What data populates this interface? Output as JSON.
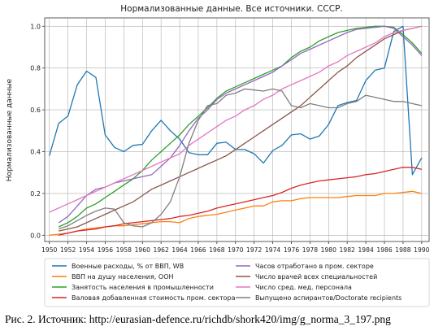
{
  "caption": "Рис. 2. Источник: http://eurasian-defence.ru/richdb/shork420/img/g_norma_3_197.png",
  "chart_data": {
    "type": "line",
    "title": "Нормализованные данные. Все источники. СССР.",
    "xlabel": "",
    "ylabel": "Нормализованные данные",
    "xlim": [
      1949.5,
      1990.8
    ],
    "ylim": [
      -0.03,
      1.04
    ],
    "x_ticks": [
      1950,
      1952,
      1954,
      1956,
      1958,
      1960,
      1962,
      1964,
      1966,
      1968,
      1970,
      1972,
      1974,
      1976,
      1978,
      1980,
      1982,
      1984,
      1986,
      1988,
      1990
    ],
    "y_ticks": [
      0.0,
      0.2,
      0.4,
      0.6,
      0.8,
      1.0
    ],
    "y_tick_labels": [
      "0.0",
      "0.2",
      "0.4",
      "0.6",
      "0.8",
      "1.0"
    ],
    "grid": true,
    "legend_position": "below",
    "series": [
      {
        "name": "Военные расходы, % от ВВП, WB",
        "color": "#1f77b4",
        "x": [
          1950,
          1951,
          1952,
          1953,
          1954,
          1955,
          1956,
          1957,
          1958,
          1959,
          1960,
          1961,
          1962,
          1963,
          1964,
          1965,
          1966,
          1967,
          1968,
          1969,
          1970,
          1971,
          1972,
          1973,
          1974,
          1975,
          1976,
          1977,
          1978,
          1979,
          1980,
          1981,
          1982,
          1983,
          1984,
          1985,
          1986,
          1987,
          1988,
          1989,
          1990
        ],
        "y": [
          0.38,
          0.535,
          0.57,
          0.72,
          0.785,
          0.755,
          0.48,
          0.42,
          0.4,
          0.43,
          0.435,
          0.5,
          0.55,
          0.5,
          0.46,
          0.395,
          0.385,
          0.385,
          0.44,
          0.445,
          0.41,
          0.41,
          0.39,
          0.345,
          0.405,
          0.43,
          0.48,
          0.485,
          0.46,
          0.475,
          0.53,
          0.62,
          0.635,
          0.645,
          0.74,
          0.79,
          0.8,
          0.975,
          1.0,
          0.29,
          0.37
        ]
      },
      {
        "name": "ВВП на душу населения, ООН",
        "color": "#ff7f0e",
        "x": [
          1950,
          1951,
          1952,
          1953,
          1954,
          1955,
          1956,
          1957,
          1958,
          1959,
          1960,
          1961,
          1962,
          1963,
          1964,
          1965,
          1966,
          1967,
          1968,
          1969,
          1970,
          1971,
          1972,
          1973,
          1974,
          1975,
          1976,
          1977,
          1978,
          1979,
          1980,
          1981,
          1982,
          1983,
          1984,
          1985,
          1986,
          1987,
          1988,
          1989,
          1990
        ],
        "y": [
          0.0,
          0.005,
          0.01,
          0.02,
          0.03,
          0.035,
          0.04,
          0.045,
          0.045,
          0.05,
          0.055,
          0.06,
          0.065,
          0.065,
          0.06,
          0.08,
          0.09,
          0.095,
          0.1,
          0.11,
          0.12,
          0.13,
          0.14,
          0.14,
          0.16,
          0.165,
          0.165,
          0.175,
          0.18,
          0.18,
          0.18,
          0.18,
          0.185,
          0.19,
          0.19,
          0.19,
          0.2,
          0.2,
          0.205,
          0.21,
          0.2
        ]
      },
      {
        "name": "Занятость населения в промышленности",
        "color": "#2ca02c",
        "x": [
          1951,
          1952,
          1953,
          1954,
          1955,
          1956,
          1957,
          1958,
          1959,
          1960,
          1961,
          1962,
          1963,
          1964,
          1965,
          1966,
          1967,
          1968,
          1969,
          1970,
          1971,
          1972,
          1973,
          1974,
          1975,
          1976,
          1977,
          1978,
          1979,
          1980,
          1981,
          1982,
          1983,
          1984,
          1985,
          1986,
          1987,
          1988,
          1989,
          1990
        ],
        "y": [
          0.04,
          0.06,
          0.09,
          0.13,
          0.15,
          0.18,
          0.21,
          0.24,
          0.27,
          0.31,
          0.36,
          0.4,
          0.44,
          0.48,
          0.53,
          0.57,
          0.61,
          0.655,
          0.69,
          0.71,
          0.73,
          0.75,
          0.77,
          0.79,
          0.81,
          0.85,
          0.88,
          0.9,
          0.93,
          0.95,
          0.97,
          0.98,
          0.99,
          0.995,
          1.0,
          1.0,
          0.995,
          0.96,
          0.92,
          0.87
        ]
      },
      {
        "name": "Валовая добавленная стоимость пром. сектора",
        "color": "#d62728",
        "x": [
          1951,
          1952,
          1953,
          1954,
          1955,
          1956,
          1957,
          1958,
          1959,
          1960,
          1961,
          1962,
          1963,
          1964,
          1965,
          1966,
          1967,
          1968,
          1969,
          1970,
          1971,
          1972,
          1973,
          1974,
          1975,
          1976,
          1977,
          1978,
          1979,
          1980,
          1981,
          1982,
          1983,
          1984,
          1985,
          1986,
          1987,
          1988,
          1989,
          1990
        ],
        "y": [
          0.0,
          0.01,
          0.02,
          0.025,
          0.03,
          0.04,
          0.045,
          0.055,
          0.06,
          0.065,
          0.07,
          0.075,
          0.08,
          0.09,
          0.095,
          0.105,
          0.115,
          0.13,
          0.14,
          0.15,
          0.16,
          0.17,
          0.18,
          0.19,
          0.205,
          0.225,
          0.24,
          0.25,
          0.26,
          0.265,
          0.27,
          0.275,
          0.28,
          0.29,
          0.295,
          0.305,
          0.315,
          0.325,
          0.325,
          0.315
        ]
      },
      {
        "name": "Часов отработано в пром. секторе",
        "color": "#9467bd",
        "x": [
          1951,
          1952,
          1953,
          1954,
          1955,
          1956,
          1957,
          1958,
          1959,
          1960,
          1961,
          1962,
          1963,
          1964,
          1965,
          1966,
          1967,
          1968,
          1969,
          1970,
          1971,
          1972,
          1973,
          1974,
          1975,
          1976,
          1977,
          1978,
          1979,
          1980,
          1981,
          1982,
          1983,
          1984,
          1985,
          1986,
          1987,
          1988,
          1989,
          1990
        ],
        "y": [
          0.06,
          0.09,
          0.14,
          0.19,
          0.22,
          0.23,
          0.25,
          0.26,
          0.27,
          0.28,
          0.29,
          0.33,
          0.37,
          0.43,
          0.5,
          0.56,
          0.6,
          0.65,
          0.68,
          0.7,
          0.72,
          0.74,
          0.76,
          0.78,
          0.81,
          0.84,
          0.87,
          0.89,
          0.91,
          0.93,
          0.95,
          0.97,
          0.985,
          0.99,
          0.995,
          1.0,
          0.99,
          0.95,
          0.91,
          0.86
        ]
      },
      {
        "name": "Число врачей всех специальностей",
        "color": "#8c564b",
        "x": [
          1951,
          1952,
          1953,
          1954,
          1955,
          1956,
          1957,
          1958,
          1959,
          1960,
          1961,
          1962,
          1963,
          1964,
          1965,
          1966,
          1967,
          1968,
          1969,
          1970,
          1971,
          1972,
          1973,
          1974,
          1975,
          1976,
          1977,
          1978,
          1979,
          1980,
          1981,
          1982,
          1983,
          1984,
          1985,
          1986,
          1987,
          1988,
          1989,
          1990
        ],
        "y": [
          0.02,
          0.03,
          0.04,
          0.06,
          0.08,
          0.1,
          0.12,
          0.14,
          0.16,
          0.19,
          0.22,
          0.24,
          0.26,
          0.28,
          0.3,
          0.32,
          0.34,
          0.36,
          0.38,
          0.41,
          0.44,
          0.47,
          0.5,
          0.53,
          0.56,
          0.59,
          0.62,
          0.66,
          0.7,
          0.74,
          0.78,
          0.81,
          0.85,
          0.88,
          0.91,
          0.94,
          0.96,
          0.98,
          0.99,
          1.0
        ]
      },
      {
        "name": "Число сред. мед. персонала",
        "color": "#e377c2",
        "x": [
          1950,
          1951,
          1952,
          1953,
          1954,
          1955,
          1956,
          1957,
          1958,
          1959,
          1960,
          1961,
          1962,
          1963,
          1964,
          1965,
          1966,
          1967,
          1968,
          1969,
          1970,
          1971,
          1972,
          1973,
          1974,
          1975,
          1976,
          1977,
          1978,
          1979,
          1980,
          1981,
          1982,
          1983,
          1984,
          1985,
          1986,
          1987,
          1988,
          1989,
          1990
        ],
        "y": [
          0.11,
          0.13,
          0.15,
          0.17,
          0.19,
          0.21,
          0.23,
          0.25,
          0.27,
          0.29,
          0.31,
          0.33,
          0.35,
          0.37,
          0.39,
          0.43,
          0.46,
          0.49,
          0.52,
          0.55,
          0.57,
          0.6,
          0.62,
          0.65,
          0.67,
          0.7,
          0.72,
          0.74,
          0.76,
          0.78,
          0.81,
          0.83,
          0.86,
          0.88,
          0.9,
          0.92,
          0.95,
          0.97,
          0.98,
          0.99,
          1.0
        ]
      },
      {
        "name": "Выпущено аспирантов/Doctorate recipients",
        "color": "#7f7f7f",
        "x": [
          1951,
          1952,
          1953,
          1954,
          1955,
          1956,
          1957,
          1958,
          1959,
          1960,
          1961,
          1962,
          1963,
          1964,
          1965,
          1966,
          1967,
          1968,
          1969,
          1970,
          1971,
          1972,
          1973,
          1974,
          1975,
          1976,
          1977,
          1978,
          1979,
          1980,
          1981,
          1982,
          1983,
          1984,
          1985,
          1986,
          1987,
          1988,
          1989,
          1990
        ],
        "y": [
          0.03,
          0.045,
          0.07,
          0.095,
          0.115,
          0.13,
          0.125,
          0.06,
          0.045,
          0.04,
          0.06,
          0.1,
          0.16,
          0.28,
          0.44,
          0.55,
          0.62,
          0.63,
          0.67,
          0.68,
          0.7,
          0.695,
          0.69,
          0.7,
          0.69,
          0.62,
          0.61,
          0.63,
          0.62,
          0.61,
          0.61,
          0.63,
          0.64,
          0.67,
          0.66,
          0.65,
          0.64,
          0.64,
          0.63,
          0.62
        ]
      }
    ]
  }
}
